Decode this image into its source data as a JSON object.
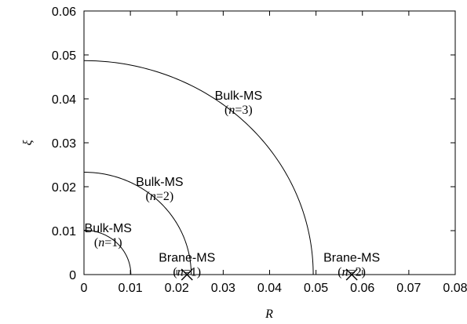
{
  "chart_data": {
    "type": "line",
    "title": "",
    "xlabel": "R",
    "ylabel": "ξ",
    "xlim": [
      0,
      0.08
    ],
    "ylim": [
      0,
      0.06
    ],
    "grid": false,
    "x_ticks": [
      0,
      0.01,
      0.02,
      0.03,
      0.04,
      0.05,
      0.06,
      0.07,
      0.08
    ],
    "x_tick_labels": [
      "0",
      "0.01",
      "0.02",
      "0.03",
      "0.04",
      "0.05",
      "0.06",
      "0.07",
      "0.08"
    ],
    "y_ticks": [
      0,
      0.01,
      0.02,
      0.03,
      0.04,
      0.05,
      0.06
    ],
    "y_tick_labels": [
      "0",
      "0.01",
      "0.02",
      "0.03",
      "0.04",
      "0.05",
      "0.06"
    ],
    "series": [
      {
        "shape": "quarter-ellipse",
        "r_intercept": 0.0101,
        "xi_intercept": 0.0101
      },
      {
        "shape": "quarter-ellipse",
        "r_intercept": 0.0231,
        "xi_intercept": 0.0233
      },
      {
        "shape": "quarter-ellipse",
        "r_intercept": 0.0494,
        "xi_intercept": 0.0487
      }
    ],
    "points": [
      {
        "marker": "x",
        "x": 0.0222,
        "y": 0
      },
      {
        "marker": "x",
        "x": 0.0577,
        "y": 0
      }
    ],
    "annotations": [
      {
        "main": "Bulk-MS",
        "var": "n",
        "eq": "=",
        "num": "1",
        "x": 0.0052,
        "y": 0.0093
      },
      {
        "main": "Bulk-MS",
        "var": "n",
        "eq": "=",
        "num": "2",
        "x": 0.0163,
        "y": 0.0198
      },
      {
        "main": "Bulk-MS",
        "var": "n",
        "eq": "=",
        "num": "3",
        "x": 0.0333,
        "y": 0.0395
      },
      {
        "main": "Brane-MS",
        "var": "n",
        "eq": "=",
        "num": "1",
        "x": 0.0222,
        "y": 0.0026
      },
      {
        "main": "Brane-MS",
        "var": "n",
        "eq": "=",
        "num": "2",
        "x": 0.0577,
        "y": 0.0026
      }
    ]
  }
}
